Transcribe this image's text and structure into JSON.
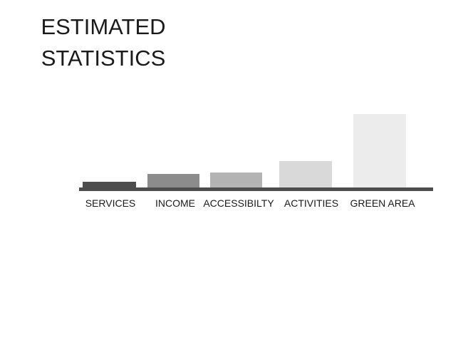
{
  "title_lines": [
    "ESTIMATED",
    "STATISTICS"
  ],
  "chart_data": {
    "type": "bar",
    "title": "ESTIMATED STATISTICS",
    "categories": [
      "SERVICES",
      "INCOME",
      "ACCESSIBILTY",
      "ACTIVITIES",
      "GREEN AREA"
    ],
    "values": [
      9,
      20,
      22,
      38,
      104
    ],
    "colors": [
      "#4d4d4d",
      "#8c8c8c",
      "#b3b3b3",
      "#d9d9d9",
      "#ececec"
    ],
    "axis_color": "#4d4d4d",
    "ylim": [
      0,
      110
    ],
    "grid": false,
    "legend": "none",
    "xlabel": "",
    "ylabel": ""
  }
}
